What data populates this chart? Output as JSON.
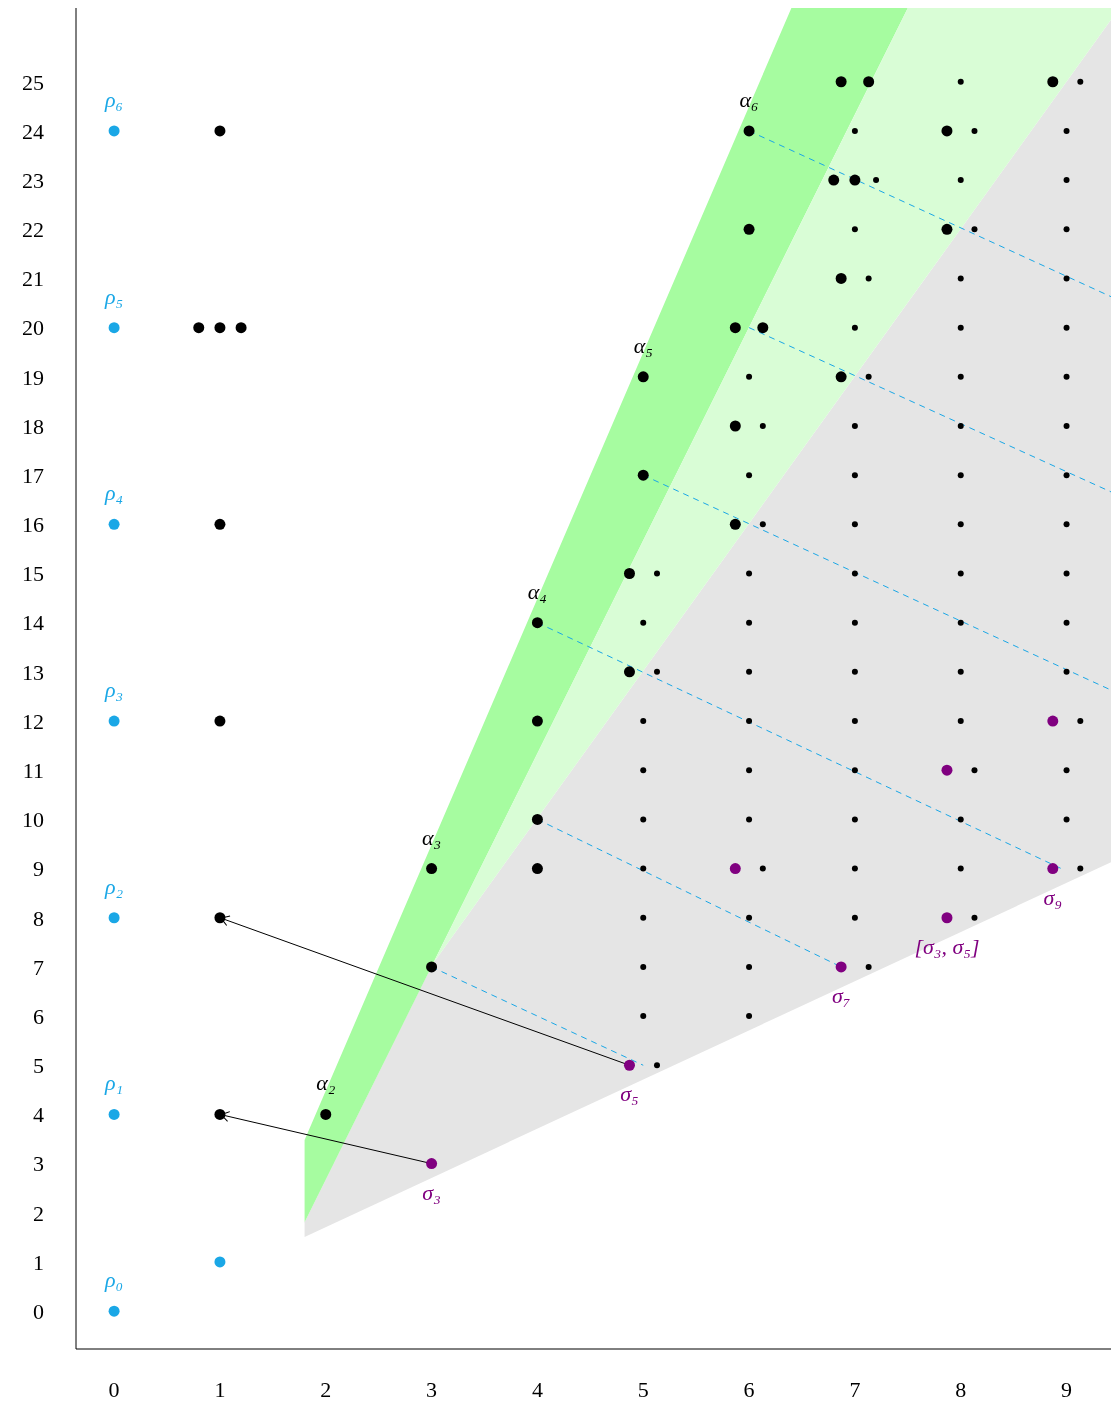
{
  "chart_data": {
    "type": "bubble",
    "xlim": [
      -0.36,
      9.42
    ],
    "ylim": [
      -0.77,
      26.5
    ],
    "xticks": [
      0,
      1,
      2,
      3,
      4,
      5,
      6,
      7,
      8,
      9
    ],
    "yticks": [
      0,
      1,
      2,
      3,
      4,
      5,
      6,
      7,
      8,
      9,
      10,
      11,
      12,
      13,
      14,
      15,
      16,
      17,
      18,
      19,
      20,
      21,
      22,
      23,
      24,
      25
    ],
    "grid": false,
    "series": [
      {
        "type": "area",
        "color": "#e5e5e5",
        "x": [
          1.8,
          3.01,
          9.42
        ],
        "values": [
          null,
          null,
          null
        ],
        "upper": [
          1.81,
          7.06,
          26.26
        ],
        "lower": [
          1.51,
          2.72,
          9.13
        ]
      },
      {
        "type": "area",
        "color": "#a6fca0",
        "x": [
          1.8,
          6.4,
          7.5
        ],
        "values": [
          null,
          null,
          null
        ],
        "upper": [
          3.48,
          26.5,
          26.5
        ],
        "lower": [
          1.81,
          21.74,
          26.5
        ]
      },
      {
        "type": "area",
        "color": "#d9fdd6",
        "x": [
          3.01,
          7.5,
          9.42
        ],
        "values": [
          null,
          null,
          null
        ],
        "upper": [
          7.06,
          26.5,
          26.5
        ],
        "lower": [
          7.06,
          20.51,
          26.26
        ]
      },
      {
        "type": "line",
        "color": "#1aa7e6",
        "line_style": "dashed",
        "x": [
          3,
          5
        ],
        "values": [
          7,
          5
        ]
      },
      {
        "type": "line",
        "color": "#1aa7e6",
        "line_style": "dashed",
        "x": [
          4,
          6.87
        ],
        "values": [
          10,
          7
        ]
      },
      {
        "type": "line",
        "color": "#1aa7e6",
        "line_style": "dashed",
        "x": [
          4,
          8.95
        ],
        "values": [
          14,
          9
        ]
      },
      {
        "type": "line",
        "color": "#1aa7e6",
        "line_style": "dashed",
        "x": [
          5,
          9.42
        ],
        "values": [
          17,
          12.63
        ]
      },
      {
        "type": "line",
        "color": "#1aa7e6",
        "line_style": "dashed",
        "x": [
          6,
          9.42
        ],
        "values": [
          20,
          16.66
        ]
      },
      {
        "type": "line",
        "color": "#1aa7e6",
        "line_style": "dashed",
        "x": [
          6,
          9.42
        ],
        "values": [
          24,
          20.63
        ]
      },
      {
        "type": "line",
        "color": "#000000",
        "line_style": "solid",
        "x": [
          3,
          1
        ],
        "values": [
          3,
          4
        ]
      },
      {
        "type": "line",
        "color": "#000000",
        "line_style": "solid",
        "x": [
          4.87,
          1
        ],
        "values": [
          5,
          8
        ]
      },
      {
        "color": "#000000",
        "marker": "circle",
        "sizes": [
          0.15,
          0.15,
          0.15,
          0.15,
          0.15,
          0.15,
          0.15,
          0.15,
          0.15,
          0.15,
          0.15,
          0.15,
          0.15,
          0.15,
          0.15,
          0.15,
          0.15,
          0.15,
          0.15,
          0.15,
          0.15,
          0.15,
          0.15,
          0.15,
          0.15,
          0.15,
          0.15,
          0.15,
          0.15,
          0.15,
          0.15,
          0.15,
          0.15,
          0.15,
          0.15,
          0.15,
          0.15,
          0.15,
          0.15,
          0.15,
          0.15,
          0.15,
          0.15,
          0.15,
          0.15,
          0.15,
          0.15,
          0.15,
          0.15,
          0.15,
          0.15,
          0.15,
          0.15,
          0.15,
          0.15,
          0.15,
          0.15,
          0.15,
          0.15,
          0.15,
          0.15,
          0.15,
          0.15,
          0.15,
          0.15,
          0.15,
          0.15,
          0.15,
          0.15,
          0.15,
          0.15,
          0.15,
          0.15,
          0.15,
          0.15,
          0.15,
          0.15,
          0.15
        ],
        "x": [
          5.13,
          5,
          5,
          5,
          5,
          5,
          5,
          5,
          5.13,
          5,
          5.13,
          6,
          6,
          6,
          6.13,
          6,
          6,
          6,
          6,
          6,
          6,
          6.13,
          6,
          6.13,
          6,
          7.13,
          7,
          7,
          7,
          7,
          7,
          7,
          7,
          7,
          7,
          7,
          7,
          7.13,
          7,
          7.13,
          7,
          7.2,
          7,
          8.13,
          8,
          8,
          8.13,
          8,
          8,
          8,
          8,
          8,
          8,
          8,
          8,
          8,
          8,
          8.13,
          8,
          8.13,
          8,
          9.13,
          9,
          9,
          9.13,
          9,
          9,
          9,
          9,
          9,
          9,
          9,
          9,
          9,
          9,
          9,
          9,
          9.13
        ],
        "values": [
          5,
          6,
          7,
          8,
          9,
          10,
          11,
          12,
          13,
          14,
          15,
          6,
          7,
          8,
          9,
          10,
          11,
          12,
          13,
          14,
          15,
          16,
          17,
          18,
          19,
          7,
          8,
          9,
          10,
          11,
          12,
          13,
          14,
          15,
          16,
          17,
          18,
          19,
          20,
          21,
          22,
          23,
          24,
          8,
          9,
          10,
          11,
          12,
          13,
          14,
          15,
          16,
          17,
          18,
          19,
          20,
          21,
          22,
          23,
          24,
          25,
          9,
          10,
          11,
          12,
          13,
          14,
          15,
          16,
          17,
          18,
          19,
          20,
          21,
          22,
          23,
          24,
          25
        ]
      },
      {
        "color": "#1aa7e6",
        "marker": "circle",
        "sizes": [
          1,
          1,
          1,
          1,
          1,
          1,
          1,
          1
        ],
        "x": [
          0,
          0,
          0,
          0,
          0,
          0,
          0,
          1
        ],
        "values": [
          0,
          4,
          8,
          12,
          16,
          20,
          24,
          1
        ],
        "value_labels": [
          "ρ₀",
          "ρ₁",
          "ρ₂",
          "ρ₃",
          "ρ₄",
          "ρ₅",
          "ρ₆",
          null
        ]
      },
      {
        "color": "#000000",
        "marker": "circle",
        "sizes": [
          1,
          1,
          1,
          1,
          1,
          1,
          1,
          1,
          1,
          1,
          1,
          1,
          1,
          1,
          1,
          1,
          1,
          1,
          1,
          1,
          1,
          1,
          1,
          1,
          1,
          1,
          1,
          1,
          1,
          1,
          1,
          1,
          1,
          1
        ],
        "x": [
          1,
          0.8,
          1,
          1.2,
          1,
          1,
          1,
          1,
          2,
          3,
          3,
          4,
          4,
          4,
          4,
          5,
          5,
          4.87,
          4.87,
          6,
          6,
          5.87,
          6.13,
          5.87,
          5.87,
          6.87,
          7.13,
          6.8,
          7,
          6.87,
          6.87,
          7.87,
          7.87,
          8.87
        ],
        "values": [
          24,
          20,
          20,
          20,
          16,
          12,
          8,
          4,
          4,
          9,
          7,
          14,
          12,
          10,
          9,
          19,
          17,
          15,
          13,
          24,
          22,
          20,
          20,
          18,
          16,
          25,
          25,
          23,
          23,
          21,
          19,
          24,
          22,
          25
        ],
        "value_labels": [
          null,
          null,
          null,
          null,
          null,
          null,
          null,
          null,
          "α₂",
          "α₃",
          null,
          "α₄",
          null,
          null,
          null,
          "α₅",
          null,
          null,
          null,
          "α₆",
          null,
          null,
          null,
          null,
          null,
          null,
          null,
          null,
          null,
          null,
          null,
          null,
          null,
          null
        ]
      },
      {
        "color": "#800080",
        "marker": "circle",
        "sizes": [
          1,
          1,
          1,
          1,
          1,
          1,
          1,
          1
        ],
        "x": [
          3,
          4.87,
          5.87,
          6.87,
          7.87,
          7.87,
          8.87,
          8.87
        ],
        "values": [
          3,
          5,
          9,
          7,
          8,
          11,
          9,
          12
        ],
        "value_labels": [
          "σ₃",
          "σ₅",
          null,
          "σ₇",
          "[σ₃, σ₅]",
          null,
          "σ₉",
          null
        ]
      }
    ]
  }
}
